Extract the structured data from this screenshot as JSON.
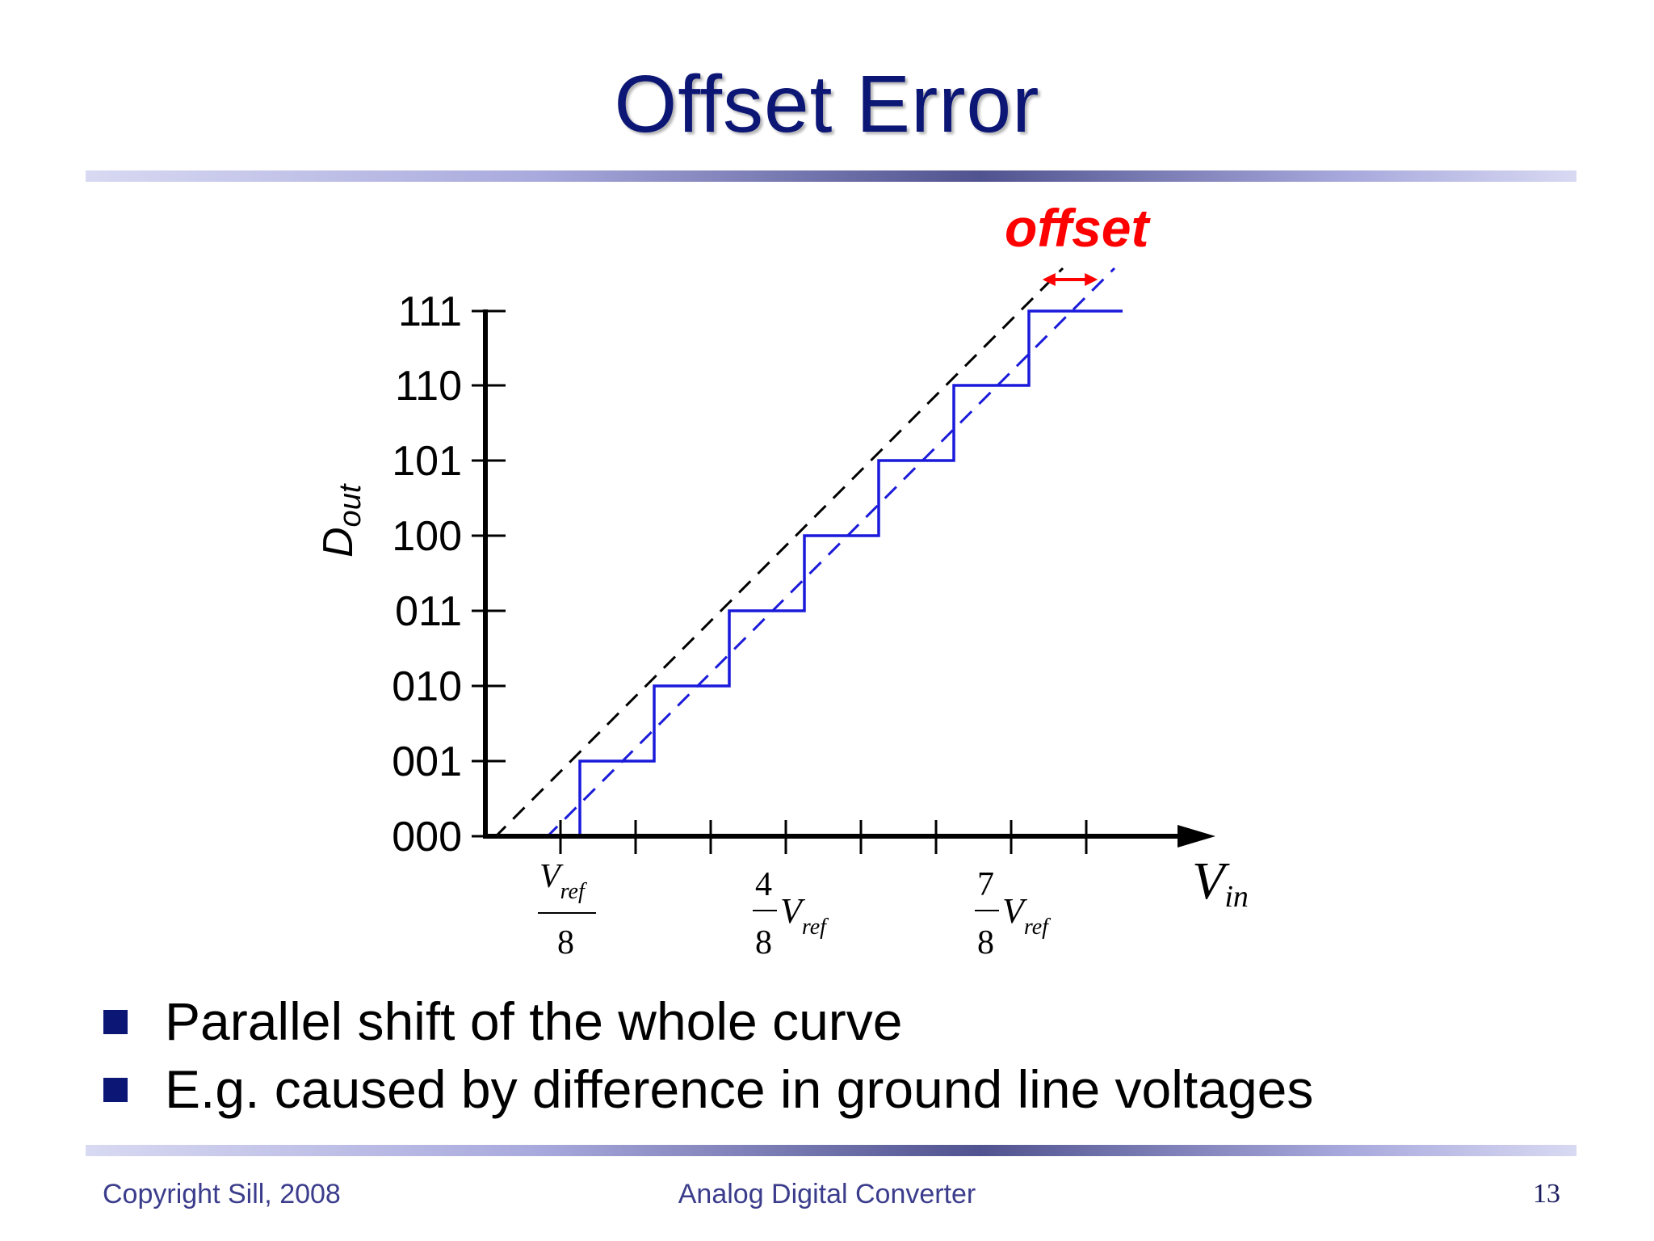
{
  "slide": {
    "title": "Offset Error",
    "bullets": [
      "Parallel shift of the whole curve",
      "E.g. caused by difference in ground line voltages"
    ],
    "footer_left": "Copyright Sill, 2008",
    "footer_center": "Analog Digital Converter",
    "page_number": "13"
  },
  "diagram": {
    "offset_label": "offset",
    "y_axis_label_main": "D",
    "y_axis_label_sub": "out",
    "x_axis_label_main": "V",
    "x_axis_label_sub": "in",
    "y_ticks": [
      "000",
      "001",
      "010",
      "011",
      "100",
      "101",
      "110",
      "111"
    ],
    "x_tick_labels": [
      {
        "numerator": "",
        "denominator": "8",
        "suffix_main": "V",
        "suffix_sub": "ref",
        "over_main": "V",
        "over_sub": "ref"
      },
      {
        "numerator": "4",
        "denominator": "8",
        "suffix_main": "V",
        "suffix_sub": "ref"
      },
      {
        "numerator": "7",
        "denominator": "8",
        "suffix_main": "V",
        "suffix_sub": "ref"
      }
    ],
    "colors": {
      "axis": "#000000",
      "staircase": "#1a1adb",
      "ideal_line": "#000000",
      "offset_line": "#1a1adb",
      "offset": "#ff0000",
      "title": "#0c1675"
    }
  }
}
